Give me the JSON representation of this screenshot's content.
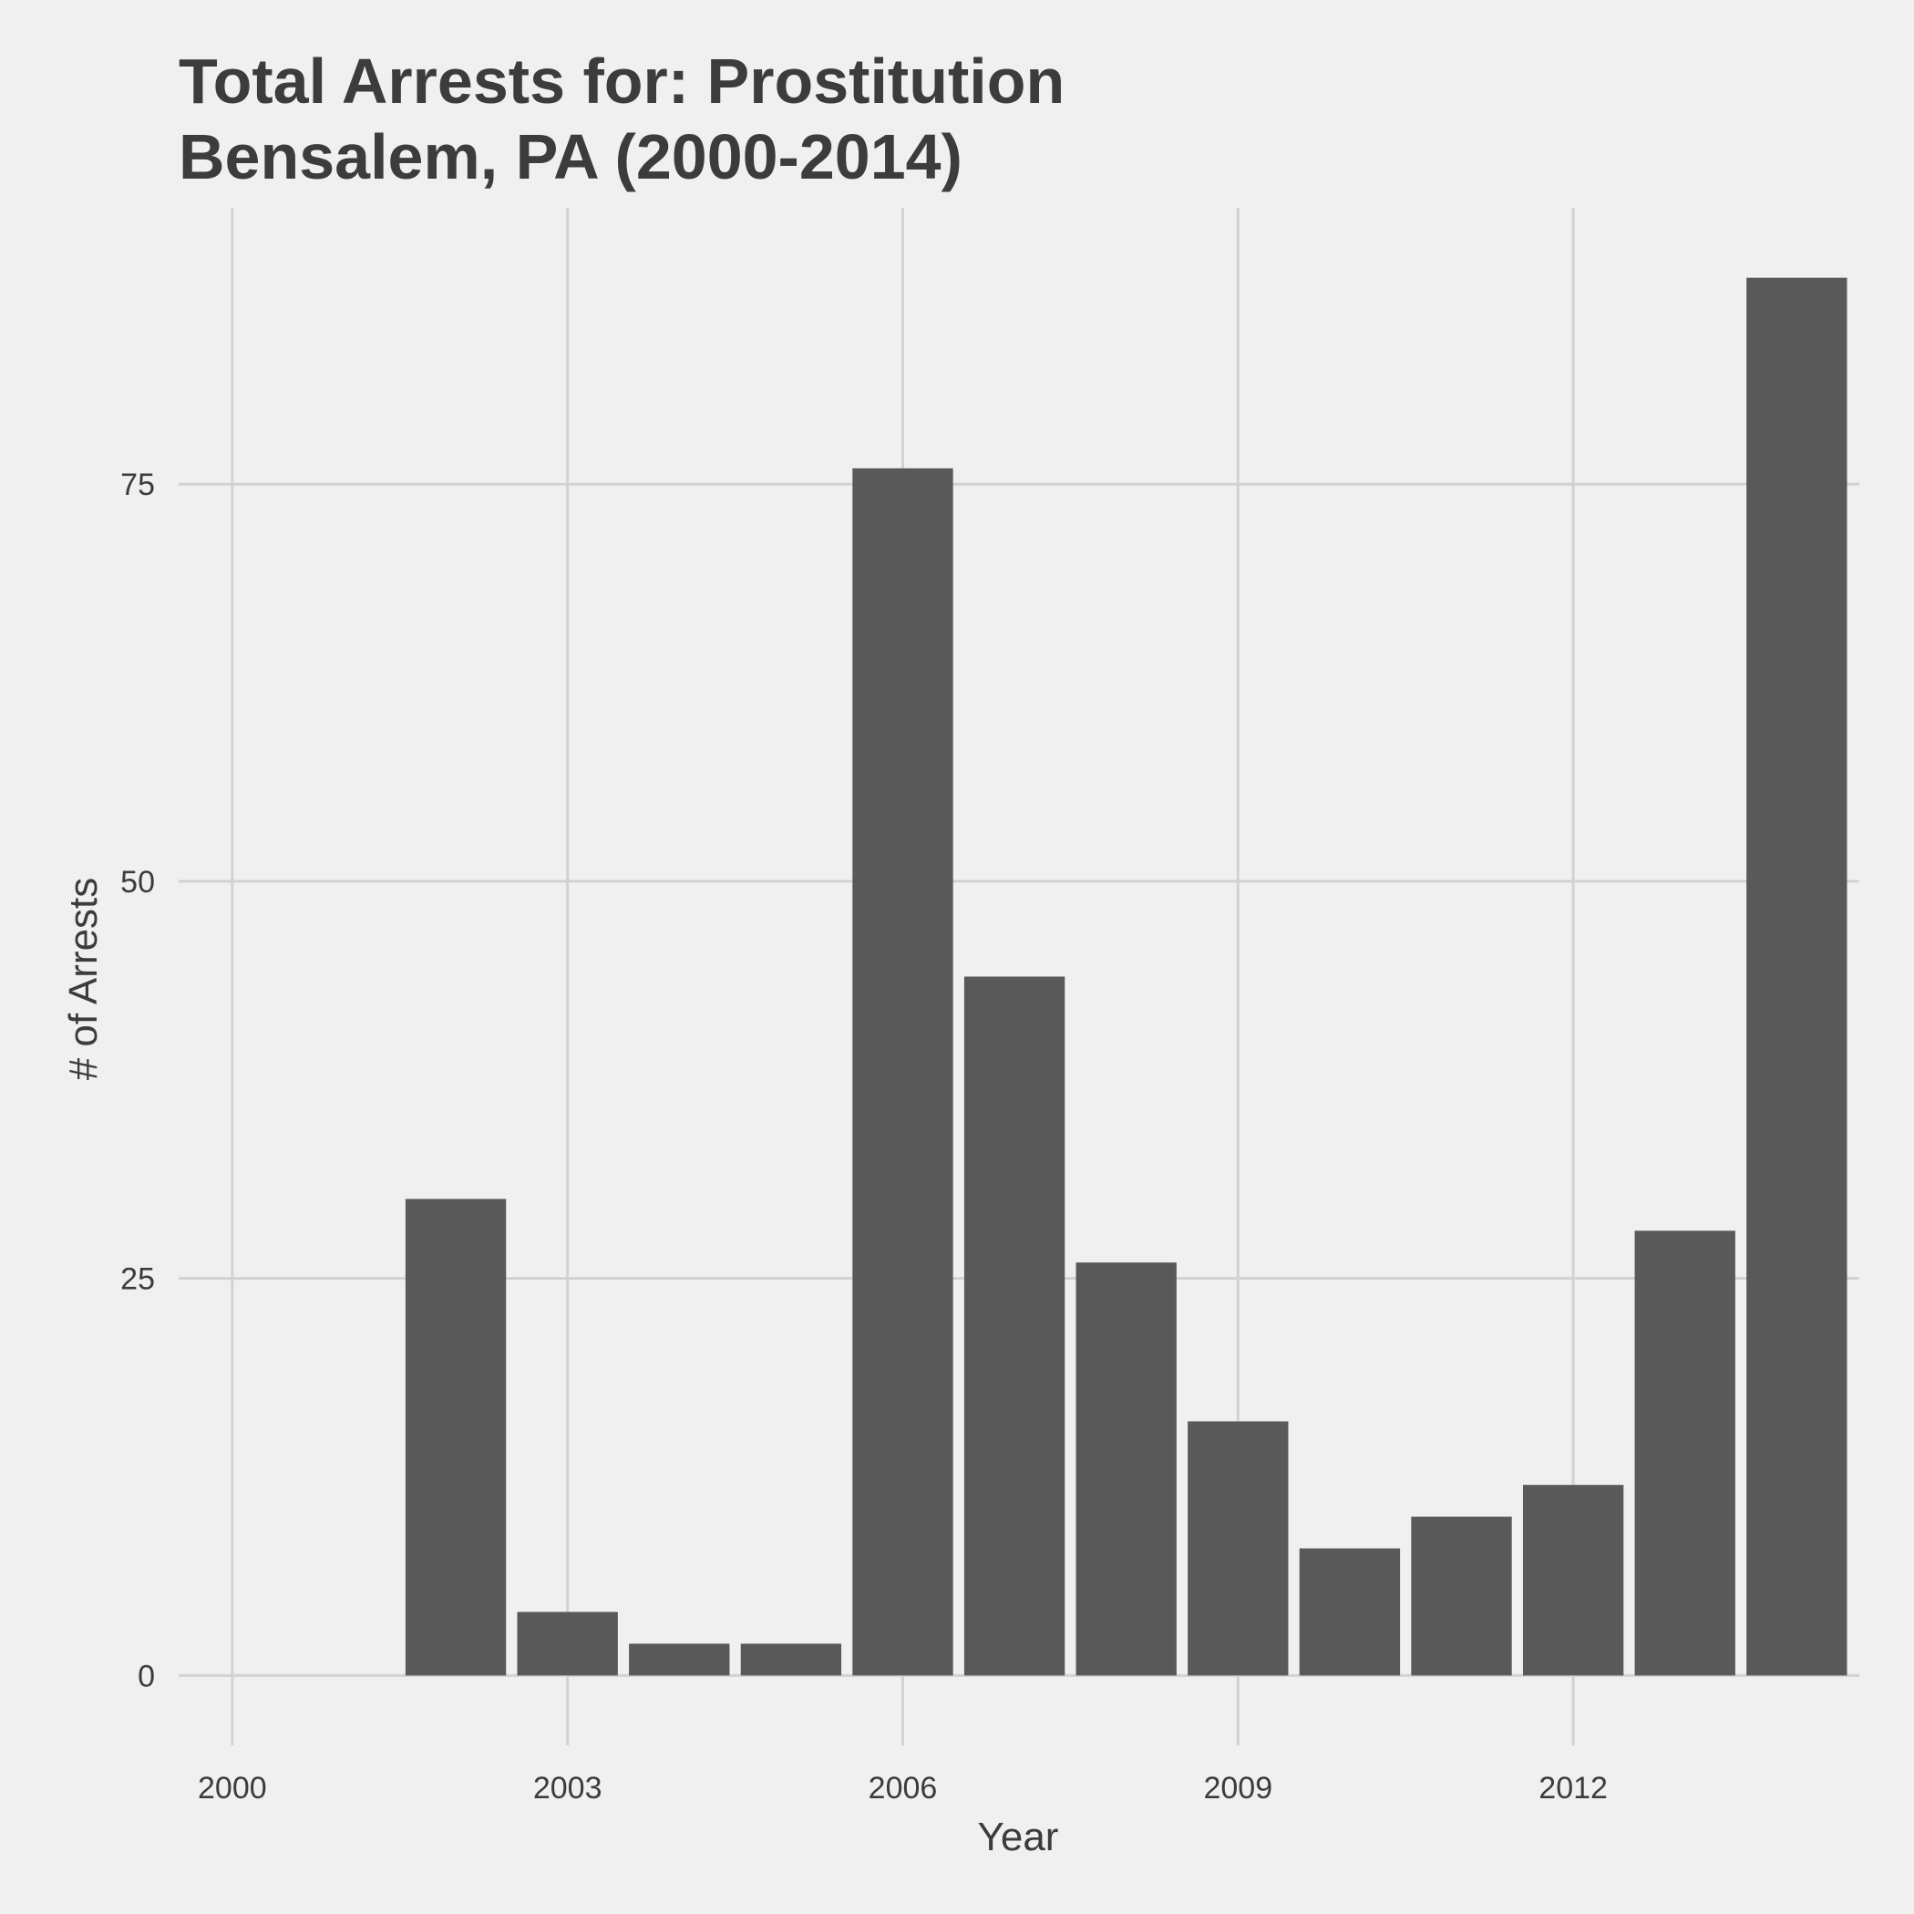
{
  "chart_data": {
    "type": "bar",
    "title_lines": [
      "Total Arrests for: Prostitution",
      "Bensalem, PA (2000-2014)"
    ],
    "xlabel": "Year",
    "ylabel": "# of Arrests",
    "x": [
      2002,
      2003,
      2004,
      2005,
      2006,
      2007,
      2008,
      2009,
      2010,
      2011,
      2012,
      2013,
      2014
    ],
    "values": [
      30,
      4,
      2,
      2,
      76,
      44,
      26,
      16,
      8,
      10,
      12,
      28,
      88
    ],
    "x_ticks": [
      2000,
      2003,
      2006,
      2009,
      2012
    ],
    "y_ticks": [
      0,
      25,
      50,
      75
    ],
    "xlim": [
      1999.52,
      2014.56
    ],
    "ylim": [
      -4.4,
      92.4
    ],
    "grid": true,
    "legend": "none",
    "colors": {
      "bar": "#595959",
      "background": "#F0F0F0",
      "grid": "#D2D2D2",
      "text": "#3C3C3C"
    }
  }
}
